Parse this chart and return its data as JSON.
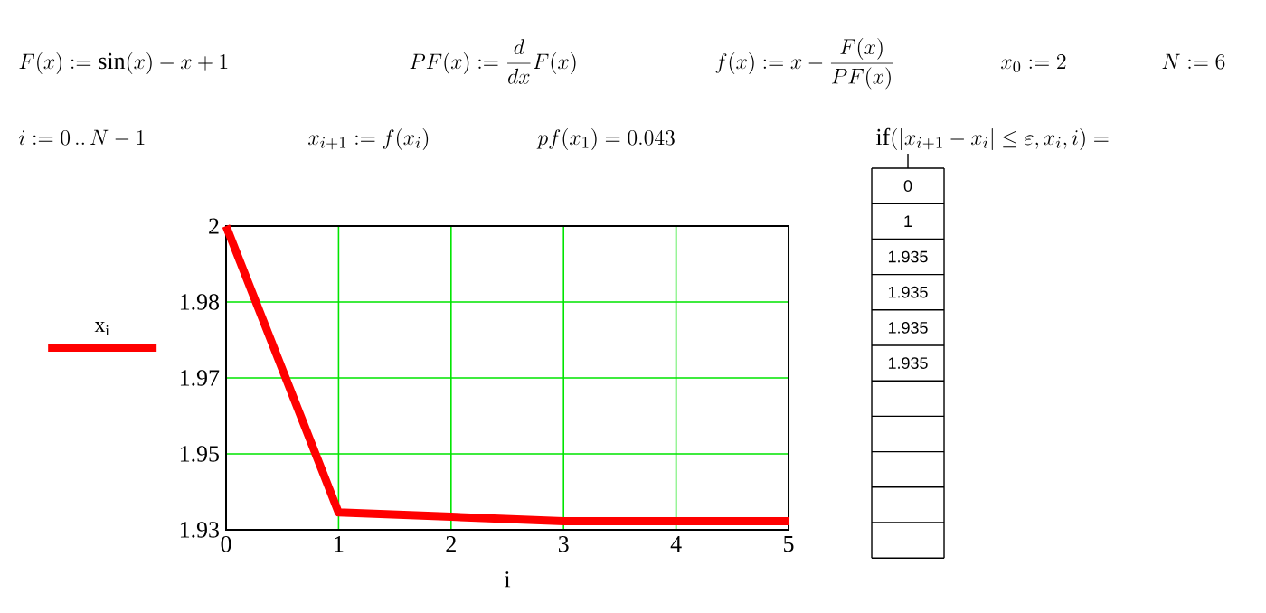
{
  "chart_data": {
    "type": "line",
    "x": [
      0,
      1,
      2,
      3,
      4,
      5
    ],
    "series": [
      {
        "name": "x$_{i}$",
        "color": "#ff0000",
        "values": [
          2,
          1.934,
          1.933,
          1.932,
          1.932,
          1.932
        ]
      }
    ],
    "xlabel": "i",
    "xlim": [
      0,
      5
    ],
    "xticks": [
      0,
      1,
      2,
      3,
      4,
      5
    ],
    "ylim": [
      1.93,
      2
    ],
    "yticks": [
      {
        "value": 1.93,
        "label": "1.93"
      },
      {
        "value": 1.9475,
        "label": "1.95"
      },
      {
        "value": 1.965,
        "label": "1.97"
      },
      {
        "value": 1.9825,
        "label": "1.98"
      },
      {
        "value": 2,
        "label": "2"
      }
    ],
    "grid": true,
    "legend": "left",
    "marker": "none",
    "line_style": "solid",
    "annotations": [
      "F(x) := \\sin(x) - x + 1",
      "PF(x) := \\frac{d}{dx}F(x)",
      "f(x) := x - \\frac{F(x)}{PF(x)}",
      "x_0 := 2",
      "N := 6",
      "i := 0 \\,..\\, N - 1",
      "x_{i+1} := f(x_i)",
      "pf(x_1) = 0.043",
      "\\mathrm{if}(|x_{i+1} - x_i| \\le \\varepsilon, x_i, i) =",
      "0",
      "1",
      "1.935",
      "1.935",
      "1.935",
      "1.935"
    ]
  }
}
